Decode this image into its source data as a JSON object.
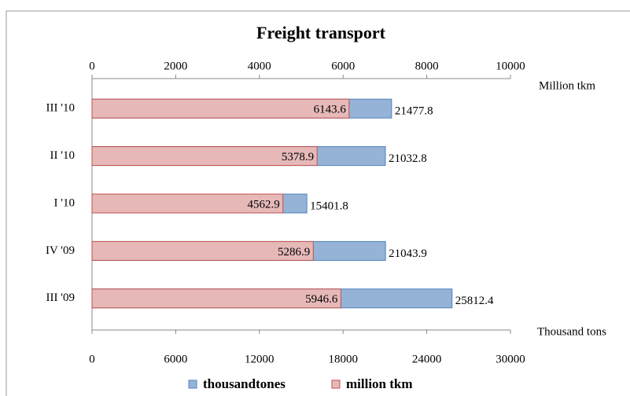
{
  "chart_data": {
    "type": "bar",
    "orientation": "horizontal",
    "title": "Freight transport",
    "categories": [
      "III '10",
      "II '10",
      "I '10",
      "IV '09",
      "III '09"
    ],
    "series": [
      {
        "name": "thousandtones",
        "color": "#95b3d7",
        "values": [
          21477.8,
          21032.8,
          15401.8,
          21043.9,
          25812.4
        ]
      },
      {
        "name": "million tkm",
        "color": "#e6b9b8",
        "axis": "x2",
        "values": [
          6143.6,
          5378.9,
          4562.9,
          5286.9,
          5946.6
        ]
      }
    ],
    "xlabel": "Thousand tons",
    "x2label": "Million tkm",
    "xlim": [
      0,
      30000
    ],
    "xticks": [
      0,
      6000,
      12000,
      18000,
      24000,
      30000
    ],
    "x2lim": [
      0,
      10000
    ],
    "x2ticks": [
      0,
      2000,
      4000,
      6000,
      8000,
      10000
    ],
    "legend": "bottom"
  }
}
